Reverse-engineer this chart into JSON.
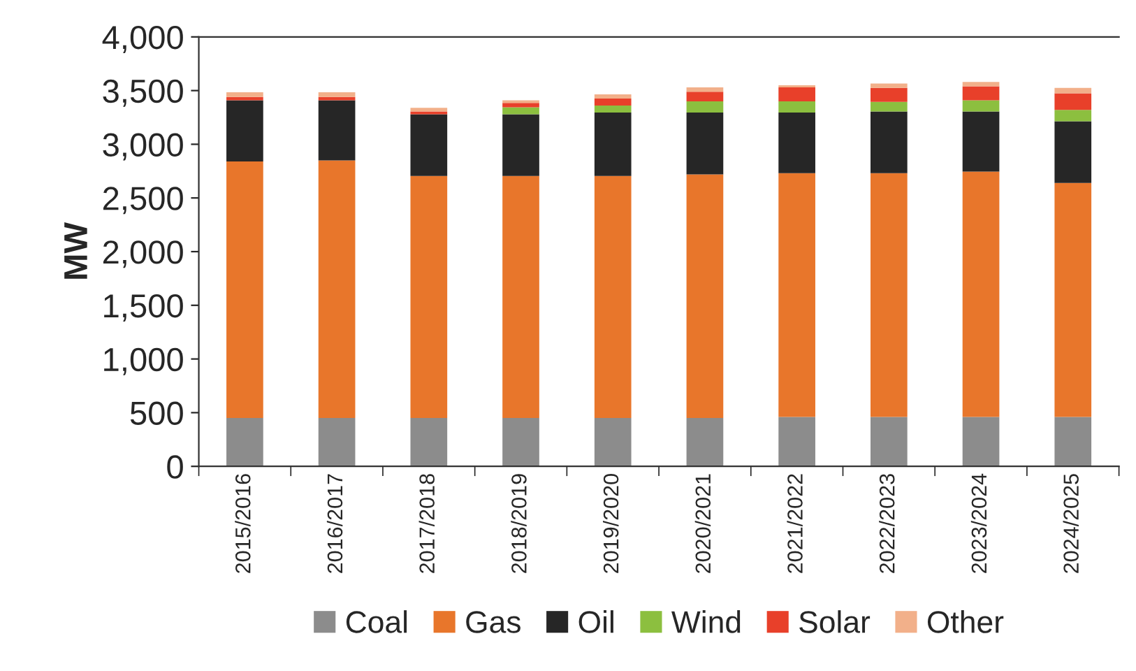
{
  "chart_data": {
    "type": "bar",
    "stacked": true,
    "ylabel": "MW",
    "categories": [
      "2015/2016",
      "2016/2017",
      "2017/2018",
      "2018/2019",
      "2019/2020",
      "2020/2021",
      "2021/2022",
      "2022/2023",
      "2023/2024",
      "2024/2025"
    ],
    "series": [
      {
        "name": "Coal",
        "color": "#8c8c8c",
        "values": [
          450,
          450,
          450,
          450,
          450,
          450,
          460,
          460,
          460,
          460
        ]
      },
      {
        "name": "Gas",
        "color": "#e8762b",
        "values": [
          2390,
          2400,
          2255,
          2255,
          2255,
          2270,
          2270,
          2270,
          2285,
          2180
        ]
      },
      {
        "name": "Oil",
        "color": "#262626",
        "values": [
          570,
          560,
          575,
          575,
          590,
          575,
          565,
          575,
          560,
          575
        ]
      },
      {
        "name": "Wind",
        "color": "#8cbf3f",
        "values": [
          null,
          null,
          null,
          65,
          65,
          105,
          105,
          90,
          105,
          105
        ]
      },
      {
        "name": "Solar",
        "color": "#e8402a",
        "values": [
          30,
          30,
          25,
          40,
          65,
          90,
          130,
          130,
          130,
          155
        ]
      },
      {
        "name": "Other",
        "color": "#f2b08a",
        "values": [
          45,
          45,
          35,
          25,
          40,
          40,
          20,
          40,
          40,
          50
        ]
      }
    ],
    "ylim": [
      0,
      4000
    ],
    "yticks": [
      {
        "value": 0,
        "label": "0"
      },
      {
        "value": 500,
        "label": "500"
      },
      {
        "value": 1000,
        "label": "1,000"
      },
      {
        "value": 1500,
        "label": "1,500"
      },
      {
        "value": 2000,
        "label": "2,000"
      },
      {
        "value": 2500,
        "label": "2,500"
      },
      {
        "value": 3000,
        "label": "3,000"
      },
      {
        "value": 3500,
        "label": "3,500"
      },
      {
        "value": 4000,
        "label": "4,000"
      }
    ],
    "grid": false,
    "legend": "bottom"
  }
}
